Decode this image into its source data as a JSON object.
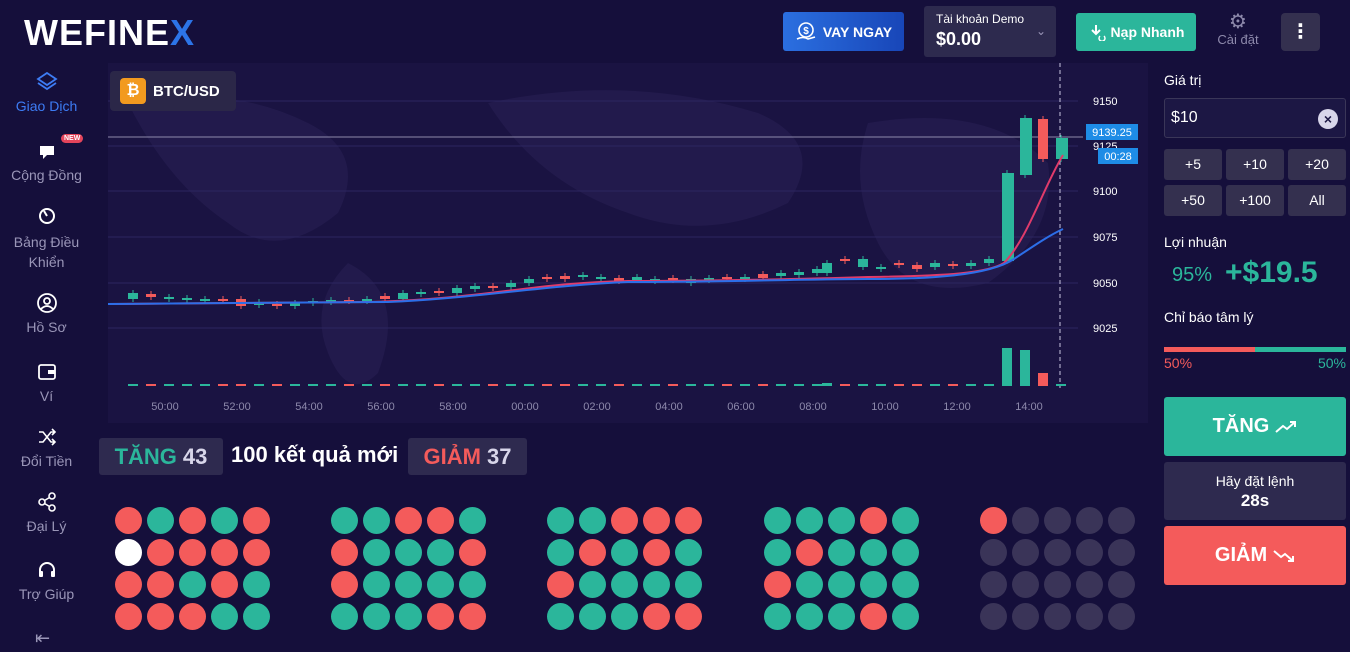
{
  "header": {
    "logo_text": "WEFINE",
    "logo_accent": "X",
    "loan_button": "VAY NGAY",
    "account_label": "Tài khoản Demo",
    "account_balance": "$0.00",
    "deposit_button": "Nạp Nhanh",
    "settings_label": "Cài đặt"
  },
  "sidebar": {
    "items": [
      {
        "label": "Giao Dịch",
        "icon": "trade-icon",
        "active": true
      },
      {
        "label": "Cộng Đồng",
        "icon": "community-icon",
        "badge": "NEW"
      },
      {
        "label": "Bảng Điều Khiển",
        "icon": "dashboard-icon"
      },
      {
        "label": "Hồ Sơ",
        "icon": "profile-icon"
      },
      {
        "label": "Ví",
        "icon": "wallet-icon"
      },
      {
        "label": "Đổi Tiền",
        "icon": "exchange-icon"
      },
      {
        "label": "Đại Lý",
        "icon": "share-icon"
      },
      {
        "label": "Trợ Giúp",
        "icon": "headset-icon"
      }
    ]
  },
  "pair": {
    "symbol": "BTC/USD",
    "coin_glyph": "₿"
  },
  "chart": {
    "y_ticks": [
      "9150",
      "9125",
      "9100",
      "9075",
      "9050",
      "9025"
    ],
    "x_ticks": [
      "50:00",
      "52:00",
      "54:00",
      "56:00",
      "58:00",
      "00:00",
      "02:00",
      "04:00",
      "06:00",
      "08:00",
      "10:00",
      "12:00",
      "14:00"
    ],
    "price_label": "9139.25",
    "timer_label": "00:28",
    "colors": {
      "up": "#2bb69b",
      "down": "#f45b5b"
    }
  },
  "stats": {
    "up_word": "TĂNG",
    "up_count": "43",
    "middle": "100 kết quả mới",
    "down_word": "GIẢM",
    "down_count": "37"
  },
  "history": {
    "groups": [
      [
        "r",
        "g",
        "r",
        "g",
        "r",
        "w",
        "r",
        "r",
        "r",
        "r",
        "r",
        "r",
        "g",
        "r",
        "g",
        "r",
        "r",
        "r",
        "g",
        "g"
      ],
      [
        "g",
        "g",
        "r",
        "r",
        "g",
        "r",
        "g",
        "g",
        "g",
        "r",
        "r",
        "g",
        "g",
        "g",
        "g",
        "g",
        "g",
        "g",
        "r",
        "r"
      ],
      [
        "g",
        "g",
        "r",
        "r",
        "r",
        "g",
        "r",
        "g",
        "r",
        "g",
        "r",
        "g",
        "g",
        "g",
        "g",
        "g",
        "g",
        "g",
        "r",
        "r"
      ],
      [
        "g",
        "g",
        "g",
        "r",
        "g",
        "g",
        "r",
        "g",
        "g",
        "g",
        "r",
        "g",
        "g",
        "g",
        "g",
        "g",
        "g",
        "g",
        "r",
        "g"
      ],
      [
        "r",
        "e",
        "e",
        "e",
        "e",
        "e",
        "e",
        "e",
        "e",
        "e",
        "e",
        "e",
        "e",
        "e",
        "e",
        "e",
        "e",
        "e",
        "e",
        "e"
      ]
    ]
  },
  "panel": {
    "value_label": "Giá trị",
    "amount": "$10",
    "quick": [
      "+5",
      "+10",
      "+20",
      "+50",
      "+100",
      "All"
    ],
    "profit_label": "Lợi nhuận",
    "profit_pct": "95%",
    "profit_value": "+$19.5",
    "sentiment_label": "Chỉ báo tâm lý",
    "sentiment_down": "50%",
    "sentiment_up": "50%",
    "sentiment_down_fraction": 0.5,
    "up_button": "TĂNG",
    "wait_text": "Hãy đặt lệnh",
    "wait_seconds": "28s",
    "down_button": "GIẢM"
  }
}
